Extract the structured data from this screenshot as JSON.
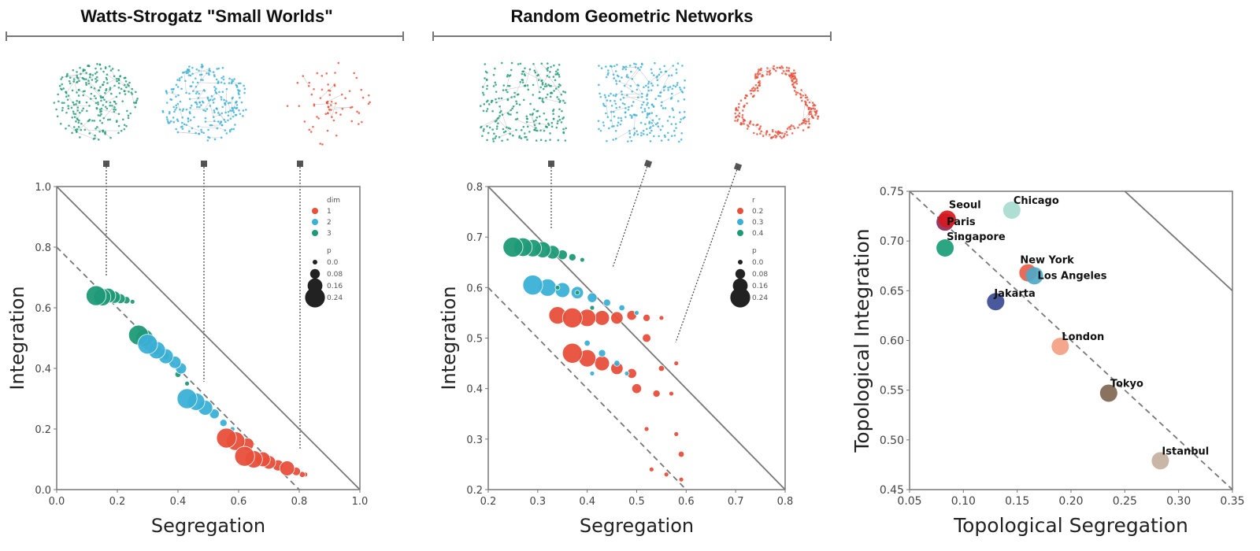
{
  "colors": {
    "dim1": "#e8503a",
    "dim2": "#3bb0d6",
    "dim3": "#1f9a78",
    "axis": "#555555"
  },
  "panel_titles": [
    "Watts-Strogatz \"Small Worlds\"",
    "Random Geometric Networks"
  ],
  "chart_data": [
    {
      "type": "scatter",
      "title": "",
      "xlabel": "Segregation",
      "ylabel": "Integration",
      "xlim": [
        0,
        1
      ],
      "ylim": [
        0,
        1
      ],
      "xticks": [
        "0.0",
        "0.2",
        "0.4",
        "0.6",
        "0.8",
        "1.0"
      ],
      "yticks": [
        "0.0",
        "0.2",
        "0.4",
        "0.6",
        "0.8",
        "1.0"
      ],
      "legend": {
        "placement": "top-right",
        "hue_title": "dim",
        "hue": [
          "1",
          "2",
          "3"
        ],
        "size_title": "p",
        "sizes": [
          "0.0",
          "0.08",
          "0.16",
          "0.24"
        ]
      },
      "reference_lines": [
        {
          "style": "solid",
          "from": [
            0,
            1
          ],
          "to": [
            1,
            0
          ]
        },
        {
          "style": "dashed",
          "from": [
            0,
            0.8
          ],
          "to": [
            0.8,
            0
          ]
        }
      ],
      "series": [
        {
          "name": "3",
          "color": "#1f9a78",
          "points": [
            [
              0.13,
              0.64,
              0.24
            ],
            [
              0.15,
              0.635,
              0.2
            ],
            [
              0.17,
              0.64,
              0.16
            ],
            [
              0.19,
              0.635,
              0.12
            ],
            [
              0.21,
              0.63,
              0.08
            ],
            [
              0.23,
              0.625,
              0.04
            ],
            [
              0.25,
              0.62,
              0
            ],
            [
              0.27,
              0.51,
              0.24
            ],
            [
              0.29,
              0.5,
              0.2
            ],
            [
              0.31,
              0.48,
              0.16
            ],
            [
              0.33,
              0.46,
              0.08
            ],
            [
              0.36,
              0.44,
              0.04
            ],
            [
              0.4,
              0.38,
              0.02
            ],
            [
              0.43,
              0.35,
              0
            ]
          ]
        },
        {
          "name": "2",
          "color": "#3bb0d6",
          "points": [
            [
              0.3,
              0.48,
              0.24
            ],
            [
              0.33,
              0.46,
              0.2
            ],
            [
              0.36,
              0.44,
              0.16
            ],
            [
              0.39,
              0.42,
              0.12
            ],
            [
              0.41,
              0.4,
              0.1
            ],
            [
              0.43,
              0.3,
              0.24
            ],
            [
              0.46,
              0.29,
              0.2
            ],
            [
              0.49,
              0.27,
              0.16
            ],
            [
              0.52,
              0.25,
              0.08
            ],
            [
              0.55,
              0.22,
              0.04
            ],
            [
              0.58,
              0.2,
              0
            ]
          ]
        },
        {
          "name": "1",
          "color": "#e8503a",
          "points": [
            [
              0.56,
              0.17,
              0.24
            ],
            [
              0.59,
              0.16,
              0.22
            ],
            [
              0.62,
              0.11,
              0.24
            ],
            [
              0.65,
              0.1,
              0.2
            ],
            [
              0.68,
              0.1,
              0.16
            ],
            [
              0.63,
              0.15,
              0.12
            ],
            [
              0.7,
              0.09,
              0.14
            ],
            [
              0.73,
              0.08,
              0.1
            ],
            [
              0.76,
              0.07,
              0.16
            ],
            [
              0.79,
              0.06,
              0.06
            ],
            [
              0.81,
              0.05,
              0.02
            ],
            [
              0.82,
              0.05,
              0
            ]
          ]
        }
      ]
    },
    {
      "type": "scatter",
      "title": "",
      "xlabel": "Segregation",
      "ylabel": "Integration",
      "xlim": [
        0.2,
        0.8
      ],
      "ylim": [
        0.2,
        0.8
      ],
      "xticks": [
        "0.2",
        "0.3",
        "0.4",
        "0.5",
        "0.6",
        "0.7",
        "0.8"
      ],
      "yticks": [
        "0.2",
        "0.3",
        "0.4",
        "0.5",
        "0.6",
        "0.7",
        "0.8"
      ],
      "legend": {
        "placement": "top-right",
        "hue_title": "r",
        "hue": [
          "0.2",
          "0.3",
          "0.4"
        ],
        "size_title": "p",
        "sizes": [
          "0.0",
          "0.08",
          "0.16",
          "0.24"
        ]
      },
      "reference_lines": [
        {
          "style": "solid",
          "from": [
            0.2,
            0.8
          ],
          "to": [
            0.8,
            0.2
          ]
        },
        {
          "style": "dashed",
          "from": [
            0.2,
            0.6
          ],
          "to": [
            0.6,
            0.2
          ]
        }
      ],
      "series": [
        {
          "name": "0.2",
          "color": "#e8503a",
          "points": [
            [
              0.34,
              0.545,
              0.2
            ],
            [
              0.37,
              0.54,
              0.24
            ],
            [
              0.4,
              0.54,
              0.2
            ],
            [
              0.43,
              0.54,
              0.16
            ],
            [
              0.46,
              0.54,
              0.12
            ],
            [
              0.49,
              0.545,
              0.08
            ],
            [
              0.52,
              0.54,
              0.04
            ],
            [
              0.55,
              0.54,
              0
            ],
            [
              0.37,
              0.47,
              0.24
            ],
            [
              0.4,
              0.46,
              0.2
            ],
            [
              0.43,
              0.45,
              0.16
            ],
            [
              0.46,
              0.44,
              0.12
            ],
            [
              0.49,
              0.43,
              0.08
            ],
            [
              0.52,
              0.5,
              0.06
            ],
            [
              0.55,
              0.44,
              0.02
            ],
            [
              0.58,
              0.45,
              0
            ],
            [
              0.5,
              0.4,
              0.08
            ],
            [
              0.54,
              0.39,
              0.04
            ],
            [
              0.57,
              0.39,
              0
            ],
            [
              0.52,
              0.32,
              0
            ],
            [
              0.58,
              0.31,
              0
            ],
            [
              0.59,
              0.27,
              0.02
            ],
            [
              0.53,
              0.24,
              0
            ],
            [
              0.56,
              0.23,
              0
            ],
            [
              0.59,
              0.22,
              0
            ]
          ]
        },
        {
          "name": "0.3",
          "color": "#3bb0d6",
          "points": [
            [
              0.29,
              0.605,
              0.24
            ],
            [
              0.32,
              0.6,
              0.2
            ],
            [
              0.35,
              0.595,
              0.16
            ],
            [
              0.38,
              0.59,
              0.12
            ],
            [
              0.41,
              0.58,
              0.08
            ],
            [
              0.44,
              0.57,
              0.04
            ],
            [
              0.47,
              0.56,
              0.02
            ],
            [
              0.5,
              0.55,
              0
            ],
            [
              0.4,
              0.49,
              0.02
            ],
            [
              0.43,
              0.47,
              0.04
            ],
            [
              0.46,
              0.45,
              0.02
            ],
            [
              0.41,
              0.43,
              0
            ],
            [
              0.48,
              0.43,
              0
            ]
          ]
        },
        {
          "name": "0.4",
          "color": "#1f9a78",
          "points": [
            [
              0.25,
              0.68,
              0.24
            ],
            [
              0.27,
              0.68,
              0.22
            ],
            [
              0.29,
              0.678,
              0.2
            ],
            [
              0.31,
              0.675,
              0.18
            ],
            [
              0.33,
              0.67,
              0.14
            ],
            [
              0.35,
              0.665,
              0.08
            ],
            [
              0.37,
              0.66,
              0.04
            ],
            [
              0.39,
              0.655,
              0
            ],
            [
              0.34,
              0.6,
              0
            ],
            [
              0.38,
              0.59,
              0
            ],
            [
              0.41,
              0.56,
              0
            ]
          ]
        }
      ]
    },
    {
      "type": "scatter",
      "title": "",
      "xlabel": "Topological Segregation",
      "ylabel": "Topological Integration",
      "xlim": [
        0.05,
        0.35
      ],
      "ylim": [
        0.45,
        0.75
      ],
      "xticks": [
        "0.05",
        "0.10",
        "0.15",
        "0.20",
        "0.25",
        "0.30",
        "0.35"
      ],
      "yticks": [
        "0.45",
        "0.50",
        "0.55",
        "0.60",
        "0.65",
        "0.70",
        "0.75"
      ],
      "reference_lines": [
        {
          "style": "solid",
          "from": [
            0.25,
            0.75
          ],
          "to": [
            0.35,
            0.65
          ]
        },
        {
          "style": "dashed",
          "from": [
            0.05,
            0.75
          ],
          "to": [
            0.35,
            0.45
          ]
        }
      ],
      "points": [
        {
          "label": "Paris",
          "x": 0.083,
          "y": 0.719,
          "color": "#8e2a5a"
        },
        {
          "label": "Seoul",
          "x": 0.085,
          "y": 0.722,
          "color": "#d7191c"
        },
        {
          "label": "Chicago",
          "x": 0.145,
          "y": 0.731,
          "color": "#a8dcd0"
        },
        {
          "label": "Singapore",
          "x": 0.083,
          "y": 0.693,
          "color": "#1a9e77"
        },
        {
          "label": "New York",
          "x": 0.16,
          "y": 0.668,
          "color": "#e8604a"
        },
        {
          "label": "Los Angeles",
          "x": 0.166,
          "y": 0.665,
          "color": "#4fa9c6"
        },
        {
          "label": "Jakarta",
          "x": 0.13,
          "y": 0.639,
          "color": "#3b4a94"
        },
        {
          "label": "London",
          "x": 0.19,
          "y": 0.594,
          "color": "#f4a084"
        },
        {
          "label": "Tokyo",
          "x": 0.235,
          "y": 0.547,
          "color": "#7f6650"
        },
        {
          "label": "Istanbul",
          "x": 0.283,
          "y": 0.479,
          "color": "#c4b09e"
        }
      ]
    }
  ]
}
